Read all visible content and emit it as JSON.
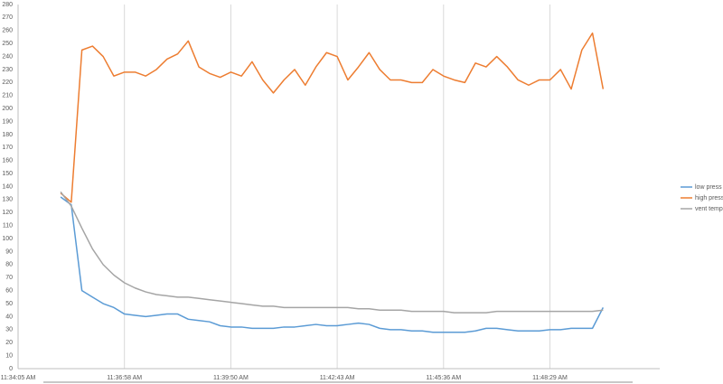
{
  "chart_data": {
    "type": "line",
    "categories": [
      "11:34:05 AM",
      null,
      null,
      null,
      null,
      null,
      null,
      null,
      null,
      null,
      "11:36:58 AM",
      null,
      null,
      null,
      null,
      null,
      null,
      null,
      null,
      null,
      "11:39:50 AM",
      null,
      null,
      null,
      null,
      null,
      null,
      null,
      null,
      null,
      "11:42:43 AM",
      null,
      null,
      null,
      null,
      null,
      null,
      null,
      null,
      null,
      "11:45:36 AM",
      null,
      null,
      null,
      null,
      null,
      null,
      null,
      null,
      null,
      "11:48:29 AM",
      null,
      null,
      null,
      null,
      null,
      null,
      null,
      null,
      null,
      null
    ],
    "series": [
      {
        "name": "low press",
        "color": "#5b9bd5",
        "values": [
          null,
          null,
          null,
          null,
          132,
          126,
          60,
          55,
          50,
          47,
          42,
          41,
          40,
          41,
          42,
          42,
          38,
          37,
          36,
          33,
          32,
          32,
          31,
          31,
          31,
          32,
          32,
          33,
          34,
          33,
          33,
          34,
          35,
          34,
          31,
          30,
          30,
          29,
          29,
          28,
          28,
          28,
          28,
          29,
          31,
          31,
          30,
          29,
          29,
          29,
          30,
          30,
          31,
          31,
          31,
          47,
          null,
          null,
          null,
          null,
          null
        ]
      },
      {
        "name": "high press",
        "color": "#ed7d31",
        "values": [
          null,
          null,
          null,
          null,
          135,
          128,
          245,
          248,
          240,
          225,
          228,
          228,
          225,
          230,
          238,
          242,
          252,
          232,
          227,
          224,
          228,
          225,
          236,
          222,
          212,
          222,
          230,
          218,
          232,
          243,
          240,
          222,
          232,
          243,
          230,
          222,
          222,
          220,
          220,
          230,
          225,
          222,
          220,
          235,
          232,
          240,
          232,
          222,
          218,
          222,
          222,
          230,
          215,
          245,
          258,
          215,
          null,
          null,
          null,
          null,
          null
        ]
      },
      {
        "name": "vent temp",
        "color": "#a5a5a5",
        "values": [
          null,
          null,
          null,
          null,
          136,
          125,
          108,
          92,
          80,
          72,
          66,
          62,
          59,
          57,
          56,
          55,
          55,
          54,
          53,
          52,
          51,
          50,
          49,
          48,
          48,
          47,
          47,
          47,
          47,
          47,
          47,
          47,
          46,
          46,
          45,
          45,
          45,
          44,
          44,
          44,
          44,
          43,
          43,
          43,
          43,
          44,
          44,
          44,
          44,
          44,
          44,
          44,
          44,
          44,
          44,
          45,
          null,
          null,
          null,
          null,
          null
        ]
      }
    ],
    "ylim": [
      0,
      280
    ],
    "yticks": [
      0,
      10,
      20,
      30,
      40,
      50,
      60,
      70,
      80,
      90,
      100,
      110,
      120,
      130,
      140,
      150,
      160,
      170,
      180,
      190,
      200,
      210,
      220,
      230,
      240,
      250,
      260,
      270,
      280
    ],
    "grid": "vertical",
    "legend": "right"
  }
}
